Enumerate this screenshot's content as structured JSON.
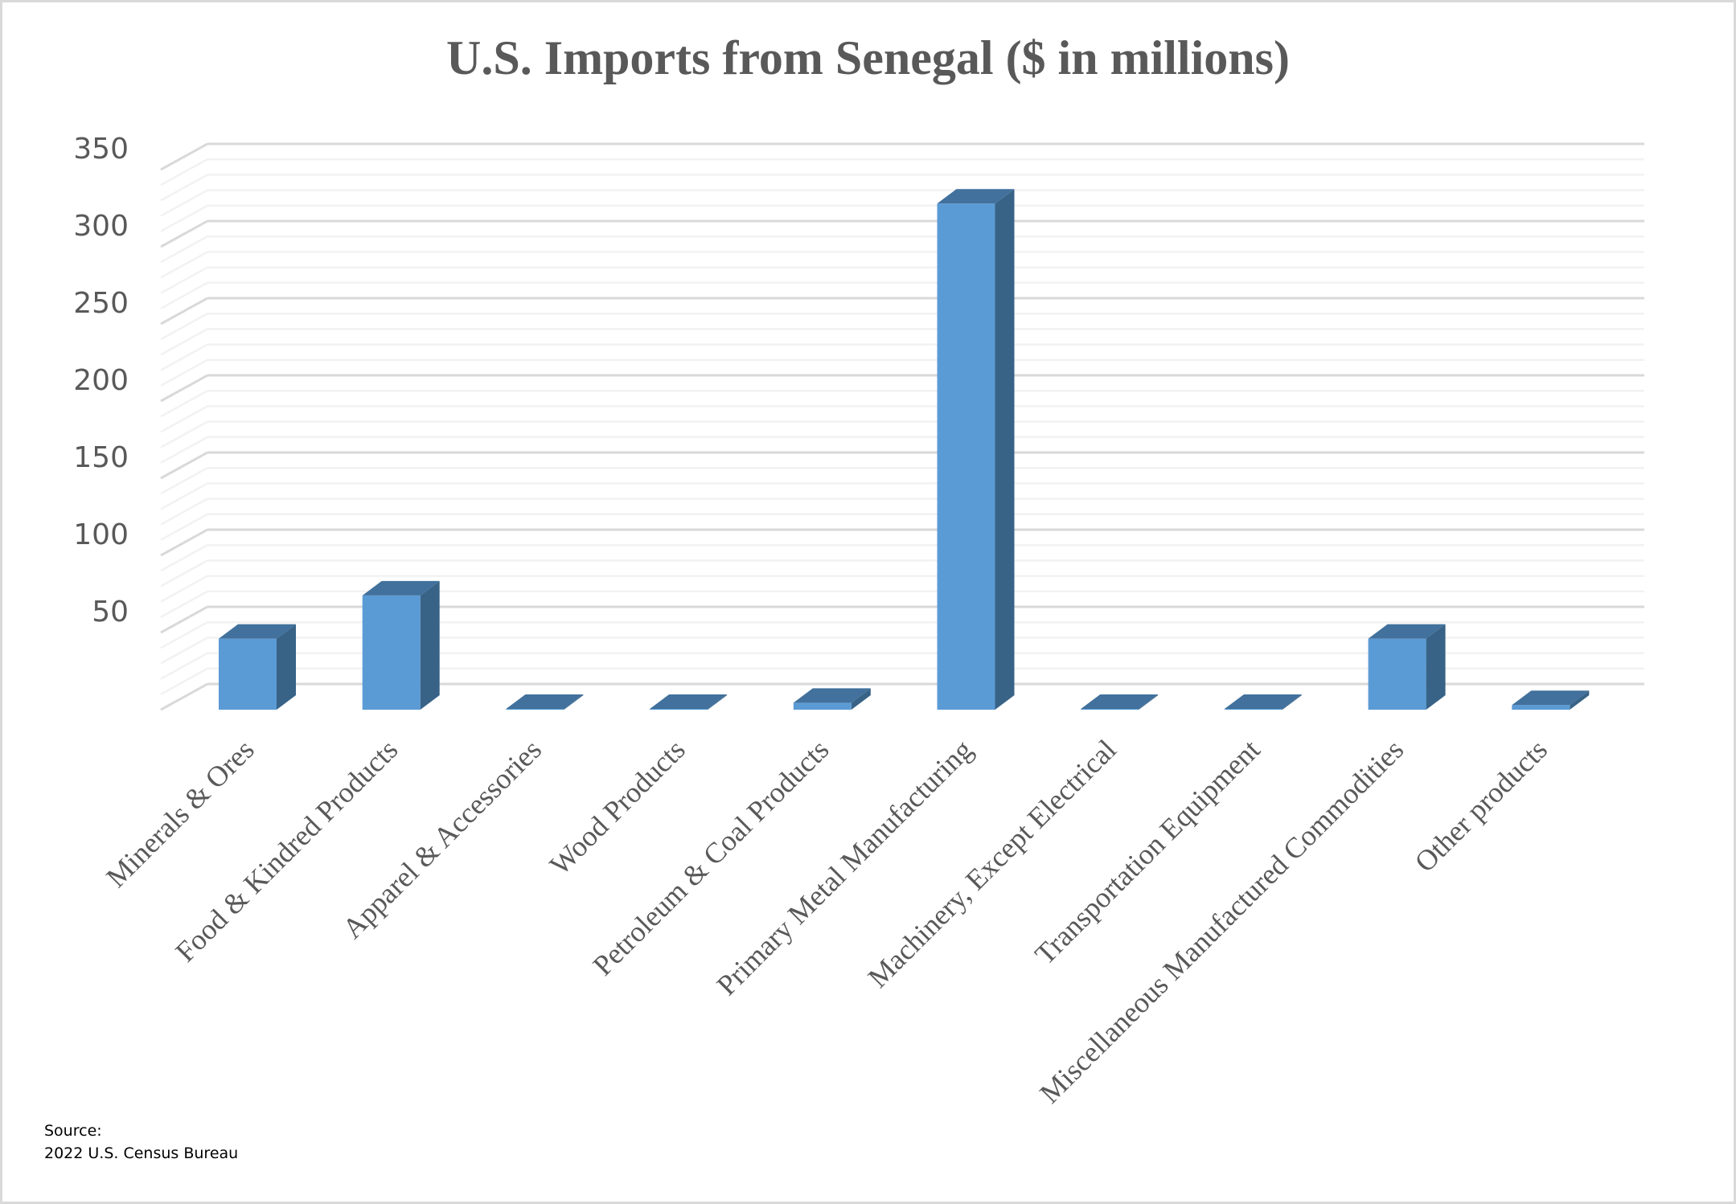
{
  "title": "U.S. Imports from Senegal ($ in millions)",
  "source": {
    "label": "Source:",
    "text": "2022 U.S. Census Bureau"
  },
  "colors": {
    "bar_front": "#5b9bd5",
    "bar_top": "#41719c",
    "bar_side": "#386387",
    "grid_major": "#d9d9d9",
    "grid_minor": "#f2f2f2",
    "text": "#595959",
    "border": "#d9d9d9"
  },
  "chart_data": {
    "type": "bar",
    "style": "3d-column",
    "title": "U.S. Imports from Senegal ($ in millions)",
    "xlabel": "",
    "ylabel": "",
    "categories": [
      "Minerals & Ores",
      "Food & Kindred Products",
      "Apparel & Accessories",
      "Wood Products",
      "Petroleum & Coal Products",
      "Primary Metal Manufacturing",
      "Machinery, Except Electrical",
      "Transportation Equipment",
      "Miscellaneous Manufactured Commodities",
      "Other products"
    ],
    "values": [
      46,
      74,
      0.3,
      0.3,
      4.5,
      328,
      0.3,
      0.3,
      46,
      3
    ],
    "yticks": [
      50,
      100,
      150,
      200,
      250,
      300,
      350
    ],
    "ylim": [
      0,
      350
    ],
    "grid": true,
    "minor_grid_step": 10,
    "legend": null
  }
}
